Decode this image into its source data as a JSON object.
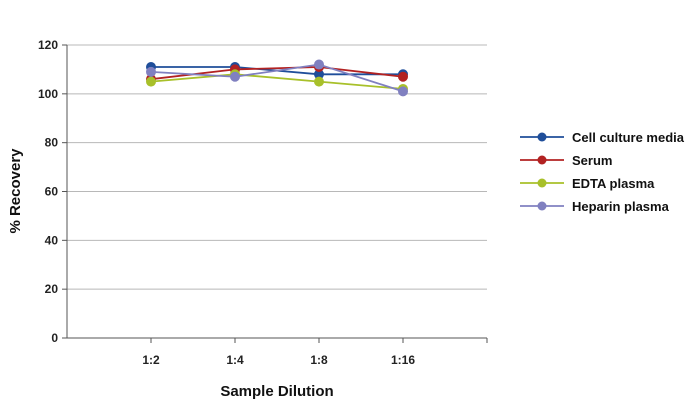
{
  "chart_data": {
    "type": "line",
    "categories": [
      "1:2",
      "1:4",
      "1:8",
      "1:16"
    ],
    "xlabel": "Sample Dilution",
    "ylabel": "% Recovery",
    "ylim": [
      0,
      120
    ],
    "yticks": [
      0,
      20,
      40,
      60,
      80,
      100,
      120
    ],
    "grid": true,
    "legend_position": "right",
    "series": [
      {
        "name": "Cell culture media",
        "color": "#1f4e9a",
        "values": [
          111,
          111,
          108,
          108
        ]
      },
      {
        "name": "Serum",
        "color": "#b22222",
        "values": [
          106,
          110,
          111,
          107
        ]
      },
      {
        "name": "EDTA plasma",
        "color": "#a8c02a",
        "values": [
          105,
          108,
          105,
          102
        ]
      },
      {
        "name": "Heparin plasma",
        "color": "#8080c0",
        "values": [
          109,
          107,
          112,
          101
        ]
      }
    ]
  }
}
